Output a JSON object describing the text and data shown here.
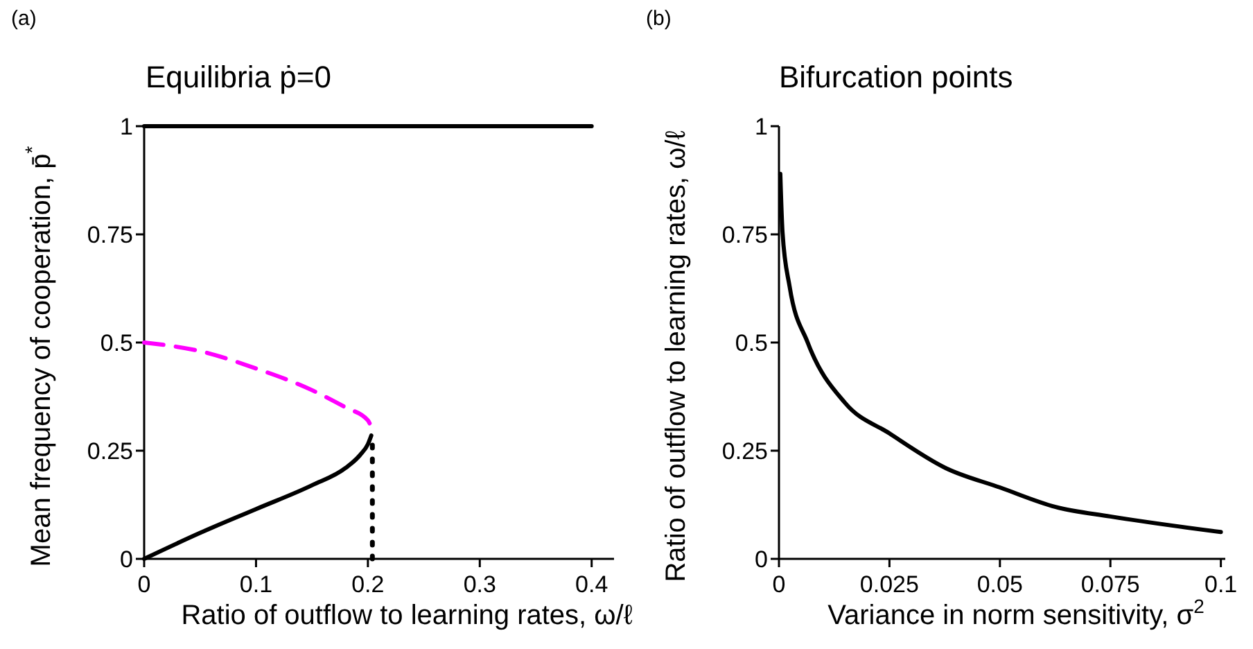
{
  "chart_data": [
    {
      "type": "line",
      "title": "Equilibria ṗ=0",
      "xlabel": "Ratio of outflow to learning rates, ω/ℓ",
      "ylabel": "Mean frequency of cooperation, p̄$^{*}$",
      "annotations": [
        "(a)"
      ],
      "xlim": [
        0,
        0.42
      ],
      "ylim": [
        0,
        1
      ],
      "xticks": [
        0,
        0.1,
        0.2,
        0.3,
        0.4
      ],
      "yticks": [
        0,
        0.25,
        0.5,
        0.75,
        1
      ],
      "marker": "none",
      "series": [
        {
          "color": "#000000",
          "x": [
            0,
            0.4
          ],
          "values": [
            1,
            1
          ],
          "line_style": "solid"
        },
        {
          "color": "#ff00ff",
          "x": [
            0,
            0.05,
            0.1,
            0.15,
            0.18,
            0.2,
            0.204
          ],
          "values": [
            0.5,
            0.48,
            0.44,
            0.39,
            0.35,
            0.32,
            0.297
          ],
          "line_style": "dashed"
        },
        {
          "color": "#000000",
          "x": [
            0,
            0.05,
            0.1,
            0.15,
            0.18,
            0.193,
            0.2,
            0.203
          ],
          "values": [
            0,
            0.06,
            0.115,
            0.17,
            0.21,
            0.24,
            0.265,
            0.285
          ],
          "line_style": "solid"
        },
        {
          "color": "#000000",
          "x": [
            0.204,
            0.204
          ],
          "values": [
            0,
            0.28
          ],
          "line_style": "dotted"
        }
      ]
    },
    {
      "type": "line",
      "title": "Bifurcation points",
      "xlabel": "Variance in norm sensitivity, σ$^{2}$",
      "ylabel": "Ratio of outflow to learning rates, ω/ℓ",
      "annotations": [
        "(b)"
      ],
      "xlim": [
        0,
        0.101
      ],
      "ylim": [
        0,
        1
      ],
      "xticks": [
        0,
        0.025,
        0.05,
        0.075,
        0.1
      ],
      "yticks": [
        0,
        0.25,
        0.5,
        0.75,
        1
      ],
      "marker": "none",
      "series": [
        {
          "color": "#000000",
          "x": [
            0.0003,
            0.0008,
            0.0024,
            0.0065,
            0.015,
            0.025,
            0.0377,
            0.05,
            0.0626,
            0.075,
            0.1
          ],
          "values": [
            0.89,
            0.755,
            0.63,
            0.5,
            0.36,
            0.29,
            0.21,
            0.165,
            0.12,
            0.098,
            0.062
          ],
          "line_style": "solid"
        }
      ]
    }
  ]
}
